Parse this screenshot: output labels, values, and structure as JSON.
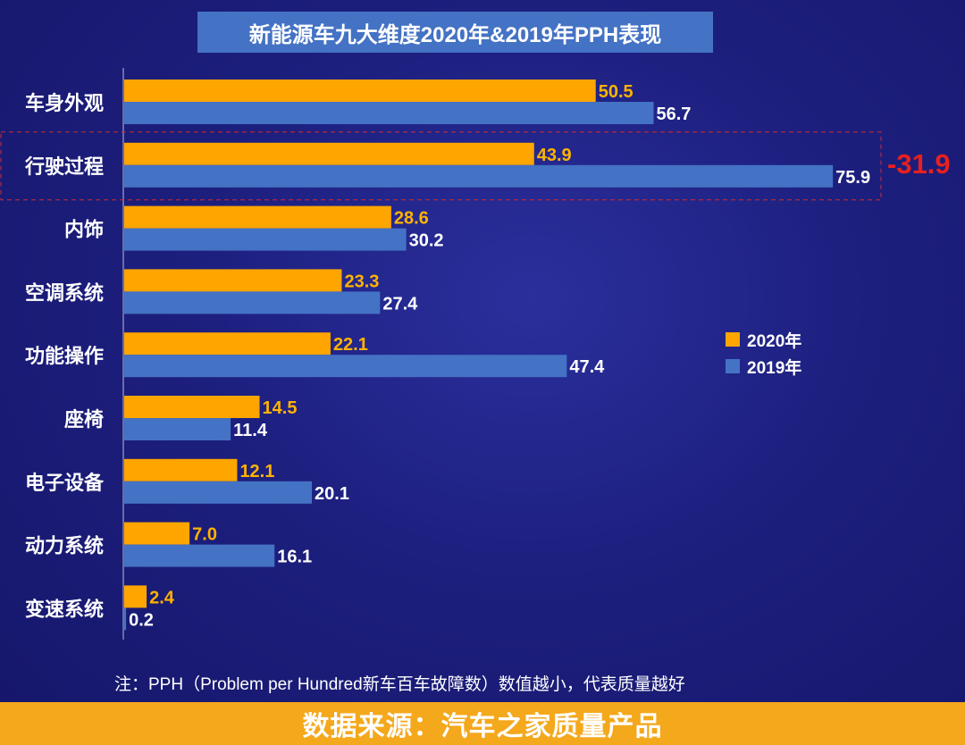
{
  "title": "新能源车九大维度2020年&2019年PPH表现",
  "legend": [
    {
      "label": "2020年",
      "color": "#ffa500"
    },
    {
      "label": "2019年",
      "color": "#4472c4"
    }
  ],
  "highlight": {
    "category": "行驶过程",
    "difference": "-31.9",
    "color": "#e8201e"
  },
  "note": "注：PPH（Problem per Hundred新车百车故障数）数值越小，代表质量越好",
  "footer": "数据来源：汽车之家质量产品",
  "chart_data": {
    "type": "bar",
    "orientation": "horizontal",
    "title": "新能源车九大维度2020年&2019年PPH表现",
    "categories": [
      "车身外观",
      "行驶过程",
      "内饰",
      "空调系统",
      "功能操作",
      "座椅",
      "电子设备",
      "动力系统",
      "变速系统"
    ],
    "series": [
      {
        "name": "2020年",
        "color": "#ffa500",
        "values": [
          50.5,
          43.9,
          28.6,
          23.3,
          22.1,
          14.5,
          12.1,
          7.0,
          2.4
        ],
        "labels": [
          "50.5",
          "43.9",
          "28.6",
          "23.3",
          "22.1",
          "14.5",
          "12.1",
          "7.0",
          "2.4"
        ]
      },
      {
        "name": "2019年",
        "color": "#4472c4",
        "values": [
          56.7,
          75.9,
          30.2,
          27.4,
          47.4,
          11.4,
          20.1,
          16.1,
          0.2
        ],
        "labels": [
          "56.7",
          "75.9",
          "30.2",
          "27.4",
          "47.4",
          "11.4",
          "20.1",
          "16.1",
          "0.2"
        ]
      }
    ],
    "xlim": [
      0,
      80
    ],
    "grid": false,
    "legend_position": "right"
  }
}
